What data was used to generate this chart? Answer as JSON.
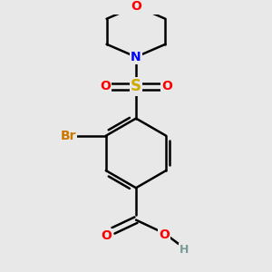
{
  "background_color": "#e8e8e8",
  "bond_color": "#000000",
  "bond_width": 1.8,
  "figsize": [
    3.0,
    3.0
  ],
  "dpi": 100,
  "atom_colors": {
    "C": "#000000",
    "H": "#7a9a9a",
    "O": "#ff0000",
    "N": "#0000ff",
    "S": "#ccaa00",
    "Br": "#cc7700"
  },
  "font_size": 10,
  "xlim": [
    0.05,
    0.95
  ],
  "ylim": [
    0.02,
    0.98
  ]
}
